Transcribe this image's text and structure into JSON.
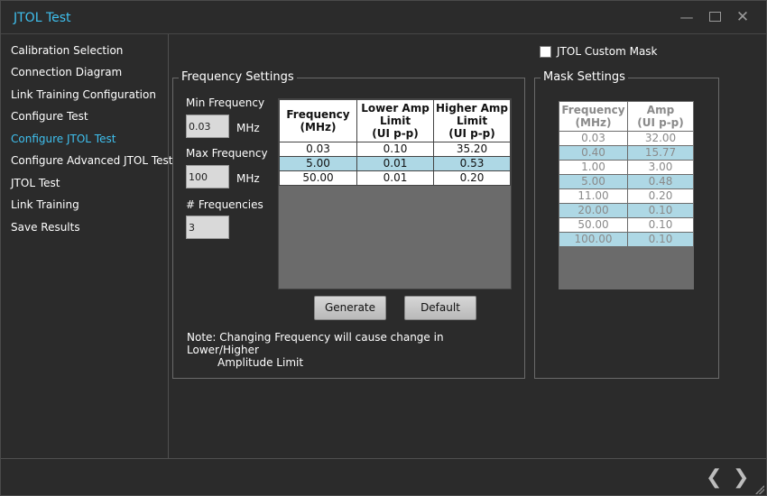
{
  "window": {
    "title": "JTOL Test",
    "minimize_icon": "minimize-icon",
    "maximize_icon": "maximize-icon",
    "close_icon": "close-icon",
    "accent": "#3fc0ef"
  },
  "sidebar": {
    "items": [
      {
        "label": "Calibration Selection",
        "active": false
      },
      {
        "label": "Connection Diagram",
        "active": false
      },
      {
        "label": "Link Training Configuration",
        "active": false
      },
      {
        "label": "Configure Test",
        "active": false
      },
      {
        "label": "Configure JTOL Test",
        "active": true
      },
      {
        "label": "Configure Advanced JTOL Test",
        "active": false
      },
      {
        "label": "JTOL Test",
        "active": false
      },
      {
        "label": "Link Training",
        "active": false
      },
      {
        "label": "Save Results",
        "active": false
      }
    ]
  },
  "custom_mask": {
    "label": "JTOL Custom Mask",
    "checked": false
  },
  "frequency_settings": {
    "title": "Frequency Settings",
    "min_label": "Min Frequency",
    "min_value": "0.03",
    "min_unit": "MHz",
    "max_label": "Max Frequency",
    "max_value": "100",
    "max_unit": "MHz",
    "count_label": "# Frequencies",
    "count_value": "3",
    "table": {
      "headers": [
        "Frequency\n(MHz)",
        "Lower Amp\nLimit\n(UI p-p)",
        "Higher Amp\nLimit\n(UI p-p)"
      ],
      "rows": [
        [
          "0.03",
          "0.10",
          "35.20"
        ],
        [
          "5.00",
          "0.01",
          "0.53"
        ],
        [
          "50.00",
          "0.01",
          "0.20"
        ]
      ]
    },
    "generate_label": "Generate",
    "default_label": "Default",
    "note_line1": "Note: Changing Frequency will cause change in Lower/Higher",
    "note_line2": "Amplitude Limit"
  },
  "mask_settings": {
    "title": "Mask Settings",
    "headers": [
      "Frequency\n(MHz)",
      "Amp\n(UI p-p)"
    ],
    "rows": [
      [
        "0.03",
        "32.00"
      ],
      [
        "0.40",
        "15.77"
      ],
      [
        "1.00",
        "3.00"
      ],
      [
        "5.00",
        "0.48"
      ],
      [
        "11.00",
        "0.20"
      ],
      [
        "20.00",
        "0.10"
      ],
      [
        "50.00",
        "0.10"
      ],
      [
        "100.00",
        "0.10"
      ]
    ]
  },
  "footer": {
    "prev_icon": "chevron-left-icon",
    "next_icon": "chevron-right-icon"
  }
}
